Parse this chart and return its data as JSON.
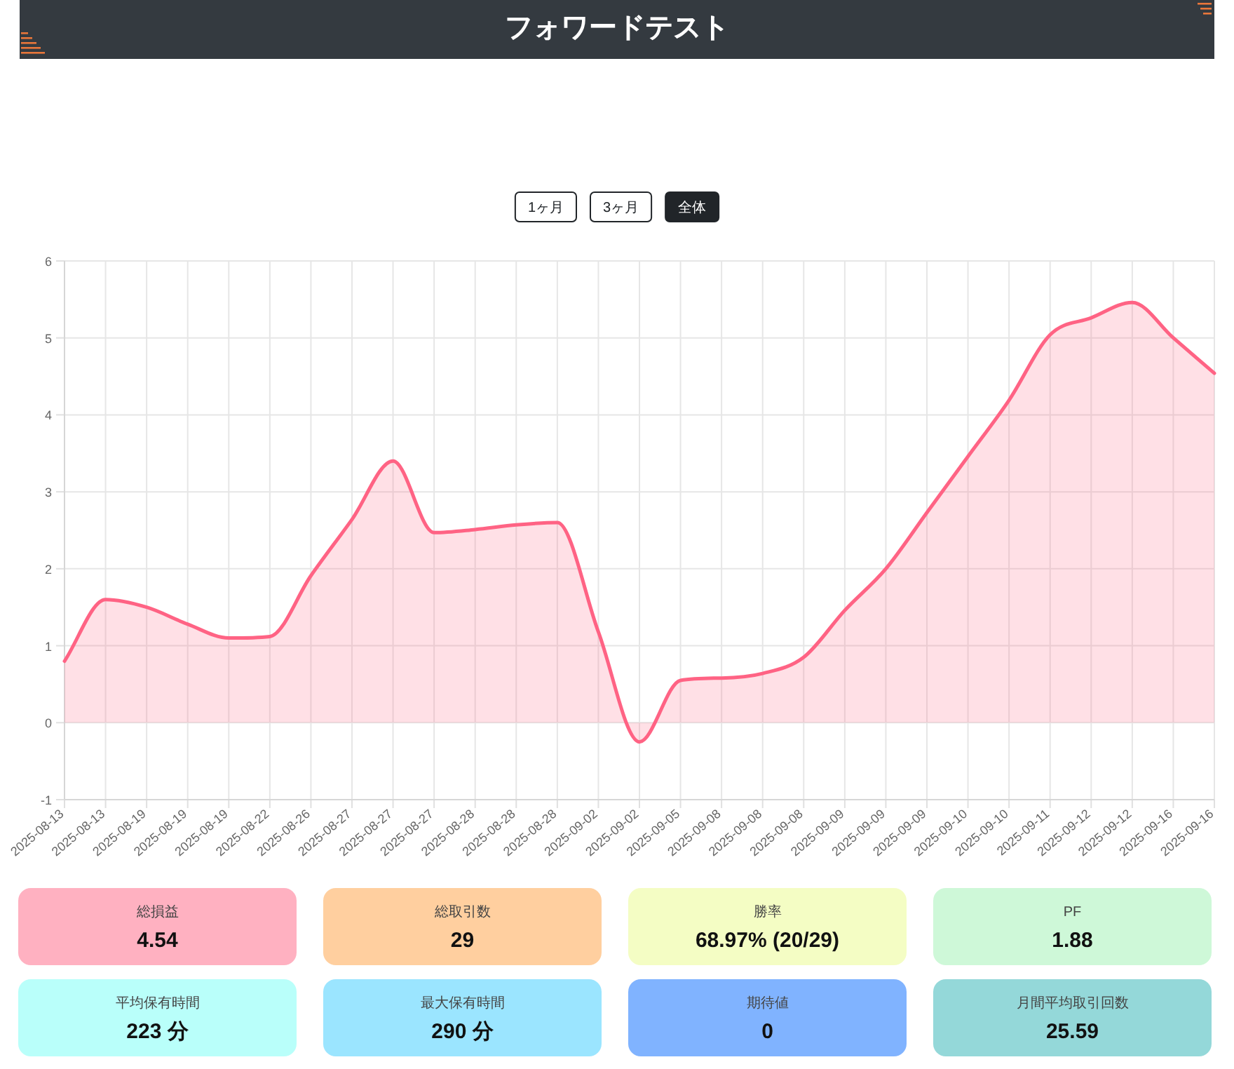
{
  "chart_data": [
    {
      "type": "other",
      "title": "フォワードテスト",
      "categories": [
        "1ヶ月",
        "3ヶ月",
        "全体"
      ],
      "colors": [
        "#ffffff",
        "#ffffff",
        "#212529"
      ]
    },
    {
      "type": "area",
      "categories": [
        "2025-08-13",
        "2025-08-13",
        "2025-08-19",
        "2025-08-19",
        "2025-08-19",
        "2025-08-22",
        "2025-08-26",
        "2025-08-27",
        "2025-08-27",
        "2025-08-27",
        "2025-08-28",
        "2025-08-28",
        "2025-08-28",
        "2025-09-02",
        "2025-09-02",
        "2025-09-05",
        "2025-09-08",
        "2025-09-08",
        "2025-09-08",
        "2025-09-09",
        "2025-09-09",
        "2025-09-09",
        "2025-09-10",
        "2025-09-10",
        "2025-09-11",
        "2025-09-12",
        "2025-09-12",
        "2025-09-16",
        "2025-09-16"
      ],
      "series": [
        {
          "color": "#ff6384",
          "values": [
            0.8,
            1.6,
            1.5,
            1.28,
            1.1,
            1.12,
            1.91,
            2.64,
            3.4,
            2.47,
            2.51,
            2.57,
            2.6,
            1.18,
            -0.25,
            0.55,
            0.58,
            0.64,
            0.85,
            1.46,
            2.0,
            2.73,
            3.46,
            4.19,
            5.04,
            5.26,
            5.46,
            5.0,
            4.54
          ]
        }
      ],
      "ylim": [
        -1,
        6
      ],
      "yticks": [
        -1,
        0,
        1,
        2,
        3,
        4,
        5,
        6
      ],
      "grid": true
    },
    {
      "type": "other",
      "categories": [
        "総損益",
        "総取引数",
        "勝率",
        "PF",
        "平均保有時間",
        "最大保有時間",
        "期待値",
        "月間平均取引回数"
      ],
      "value_labels": [
        "4.54",
        "29",
        "68.97% (20/29)",
        "1.88",
        "223 分",
        "290 分",
        "0",
        "25.59"
      ],
      "colors": [
        "#ffb1c1",
        "#ffcf9f",
        "#f4fdc4",
        "#cef8d8",
        "#b9fffa",
        "#9be5ff",
        "#80b3ff",
        "#94d8d9"
      ]
    }
  ]
}
